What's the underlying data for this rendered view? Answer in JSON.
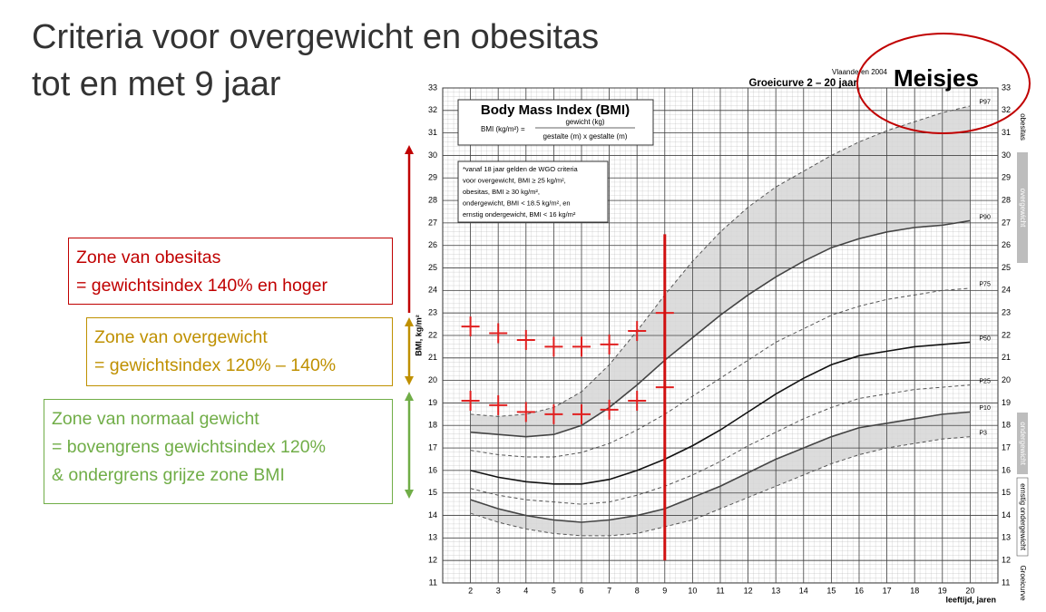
{
  "slide": {
    "title": [
      "Criteria voor overgewicht en obesitas",
      "tot en met 9 jaar"
    ],
    "zones": [
      {
        "lines": [
          "Zone van obesitas",
          "= gewichtsindex 140% en hoger"
        ],
        "color": "#c00000"
      },
      {
        "lines": [
          "Zone van overgewicht",
          "= gewichtsindex 120% – 140%"
        ],
        "color": "#bf9000"
      },
      {
        "lines": [
          "Zone van normaal gewicht",
          "= bovengrens gewichtsindex 120%",
          "& ondergrens grijze zone BMI"
        ],
        "color": "#70ad47"
      }
    ]
  },
  "chart_data": {
    "type": "line",
    "source": "Vlaanderen 2004",
    "title": "Groeicurve 2 – 20 jaar",
    "gender": "Meisjes",
    "box_title": "Body Mass Index (BMI)",
    "formula": [
      "BMI (kg/m²) =",
      "gewicht (kg)",
      "gestalte (m)  x  gestalte (m)"
    ],
    "note": [
      "*vanaf 18 jaar gelden de WGO criteria",
      "voor overgewicht, BMI ≥ 25 kg/m²,",
      "obesitas, BMI ≥ 30 kg/m²,",
      "ondergewicht, BMI < 18.5 kg/m², en",
      "ernstig ondergewicht, BMI < 16 kg/m²"
    ],
    "side_labels": [
      "obesitas",
      "overgewicht",
      "ondergewicht",
      "ernstig ondergewicht",
      "Groeicurve"
    ],
    "y_label": "BMI, kg/m²",
    "x_label": "leeftijd, jaren",
    "x": [
      2,
      3,
      4,
      5,
      6,
      7,
      8,
      9,
      10,
      11,
      12,
      13,
      14,
      15,
      16,
      17,
      18,
      19,
      20
    ],
    "series": [
      {
        "name": "P97",
        "color": "#555555",
        "dash": true,
        "values": [
          18.5,
          18.4,
          18.5,
          18.8,
          19.5,
          20.7,
          22.2,
          23.8,
          25.3,
          26.6,
          27.7,
          28.6,
          29.3,
          30.0,
          30.6,
          31.1,
          31.5,
          31.9,
          32.2
        ]
      },
      {
        "name": "P90",
        "color": "#444444",
        "dash": false,
        "values": [
          17.7,
          17.6,
          17.5,
          17.6,
          18.0,
          18.8,
          19.8,
          20.9,
          21.9,
          22.9,
          23.8,
          24.6,
          25.3,
          25.9,
          26.3,
          26.6,
          26.8,
          26.9,
          27.1
        ]
      },
      {
        "name": "P75",
        "color": "#555555",
        "dash": true,
        "values": [
          16.9,
          16.7,
          16.6,
          16.6,
          16.8,
          17.2,
          17.8,
          18.5,
          19.3,
          20.1,
          20.9,
          21.7,
          22.3,
          22.9,
          23.3,
          23.6,
          23.8,
          24.0,
          24.1
        ]
      },
      {
        "name": "P50",
        "color": "#111111",
        "dash": false,
        "values": [
          16.0,
          15.7,
          15.5,
          15.4,
          15.4,
          15.6,
          16.0,
          16.5,
          17.1,
          17.8,
          18.6,
          19.4,
          20.1,
          20.7,
          21.1,
          21.3,
          21.5,
          21.6,
          21.7
        ]
      },
      {
        "name": "P25",
        "color": "#555555",
        "dash": true,
        "values": [
          15.2,
          14.9,
          14.7,
          14.6,
          14.5,
          14.6,
          14.9,
          15.3,
          15.8,
          16.4,
          17.1,
          17.7,
          18.3,
          18.8,
          19.2,
          19.4,
          19.6,
          19.7,
          19.8
        ]
      },
      {
        "name": "P10",
        "color": "#444444",
        "dash": false,
        "values": [
          14.7,
          14.3,
          14.0,
          13.8,
          13.7,
          13.8,
          14.0,
          14.3,
          14.8,
          15.3,
          15.9,
          16.5,
          17.0,
          17.5,
          17.9,
          18.1,
          18.3,
          18.5,
          18.6
        ]
      },
      {
        "name": "P3",
        "color": "#555555",
        "dash": true,
        "values": [
          14.1,
          13.7,
          13.4,
          13.2,
          13.1,
          13.1,
          13.2,
          13.5,
          13.8,
          14.3,
          14.8,
          15.3,
          15.8,
          16.3,
          16.7,
          17.0,
          17.2,
          17.4,
          17.5
        ]
      }
    ],
    "bands": [
      [
        0,
        1
      ],
      [
        5,
        6
      ]
    ],
    "band_color": "#d6d6d6",
    "markers": {
      "color": "#e02020",
      "x": [
        2,
        3,
        4,
        5,
        6,
        7,
        8,
        9
      ],
      "upper": [
        22.4,
        22.1,
        21.8,
        21.5,
        21.5,
        21.6,
        22.2,
        23.0
      ],
      "lower": [
        19.1,
        18.9,
        18.6,
        18.5,
        18.5,
        18.7,
        19.1,
        19.7
      ]
    },
    "cutoff": {
      "x": 9,
      "range": [
        12,
        26.5
      ],
      "color": "#d01010"
    },
    "xlim": [
      1,
      21
    ],
    "ylim": [
      11,
      33
    ],
    "xticks": [
      2,
      3,
      4,
      5,
      6,
      7,
      8,
      9,
      10,
      11,
      12,
      13,
      14,
      15,
      16,
      17,
      18,
      19,
      20
    ],
    "yticks": [
      11,
      12,
      13,
      14,
      15,
      16,
      17,
      18,
      19,
      20,
      21,
      22,
      23,
      24,
      25,
      26,
      27,
      28,
      29,
      30,
      31,
      32,
      33
    ],
    "grid": true
  }
}
